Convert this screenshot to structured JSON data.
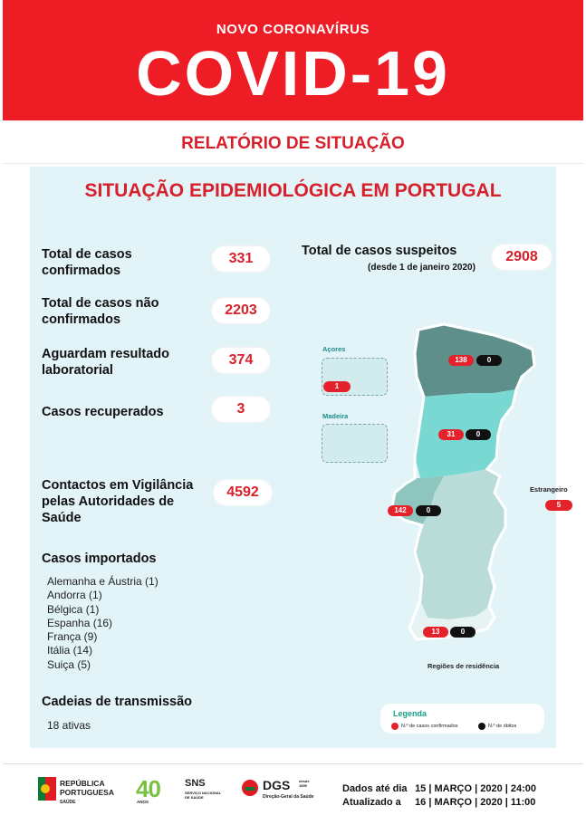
{
  "header": {
    "supertitle": "NOVO CORONAVÍRUS",
    "title": "COVID-19"
  },
  "report_title": "RELATÓRIO DE SITUAÇÃO",
  "panel_title": "SITUAÇÃO EPIDEMIOLÓGICA EM PORTUGAL",
  "stats": {
    "confirmed_label": "Total de casos confirmados",
    "confirmed_value": "331",
    "not_confirmed_label": "Total de casos não confirmados",
    "not_confirmed_value": "2203",
    "pending_label": "Aguardam resultado laboratorial",
    "pending_value": "374",
    "recovered_label": "Casos recuperados",
    "recovered_value": "3",
    "contacts_label": "Contactos em Vigilância pelas Autoridades de Saúde",
    "contacts_value": "4592",
    "suspected_label": "Total de casos suspeitos",
    "suspected_note": "(desde 1 de janeiro 2020)",
    "suspected_value": "2908"
  },
  "imported": {
    "title": "Casos importados",
    "items": [
      "Alemanha e Áustria (1)",
      "Andorra (1)",
      "Bélgica (1)",
      "Espanha (16)",
      "França (9)",
      "Itália (14)",
      "Suiça (5)"
    ]
  },
  "chains": {
    "title": "Cadeias de transmissão",
    "value": "18 ativas"
  },
  "map": {
    "azores_label": "Açores",
    "azores_confirmed": "1",
    "madeira_label": "Madeira",
    "north_confirmed": "138",
    "north_deaths": "0",
    "center_confirmed": "31",
    "center_deaths": "0",
    "lisbon_confirmed": "142",
    "lisbon_deaths": "0",
    "algarve_confirmed": "13",
    "algarve_deaths": "0",
    "abroad_label": "Estrangeiro",
    "abroad_confirmed": "5",
    "regions_label": "Regiões de residência",
    "colors": {
      "north": "#5f8f8a",
      "center": "#79d8d2",
      "south": "#b9dcd8",
      "lisbon": "#8fc5bf",
      "algarve": "#cfe7e4",
      "confirmed": "#e5222c",
      "deaths": "#111111"
    }
  },
  "legend": {
    "title": "Legenda",
    "confirmed_label": "N.º de casos confirmados",
    "deaths_label": "N.º de óbitos"
  },
  "footer": {
    "logo_republica_line1": "REPÚBLICA",
    "logo_republica_line2": "PORTUGUESA",
    "logo_republica_sub": "SAÚDE",
    "logo_sns_number": "40",
    "logo_sns_years": "ANOS",
    "logo_sns": "SNS",
    "logo_sns_sub": "SERVIÇO NACIONAL DE SAÚDE",
    "logo_dgs": "DGS",
    "logo_dgs_sub": "Direção-Geral da Saúde",
    "logo_dgs_year": "desde 1899",
    "data_label": "Dados até dia",
    "data_date": "15 | MARÇO | 2020 | 24:00",
    "updated_label": "Atualizado a",
    "updated_date": "16 | MARÇO | 2020 | 11:00"
  }
}
